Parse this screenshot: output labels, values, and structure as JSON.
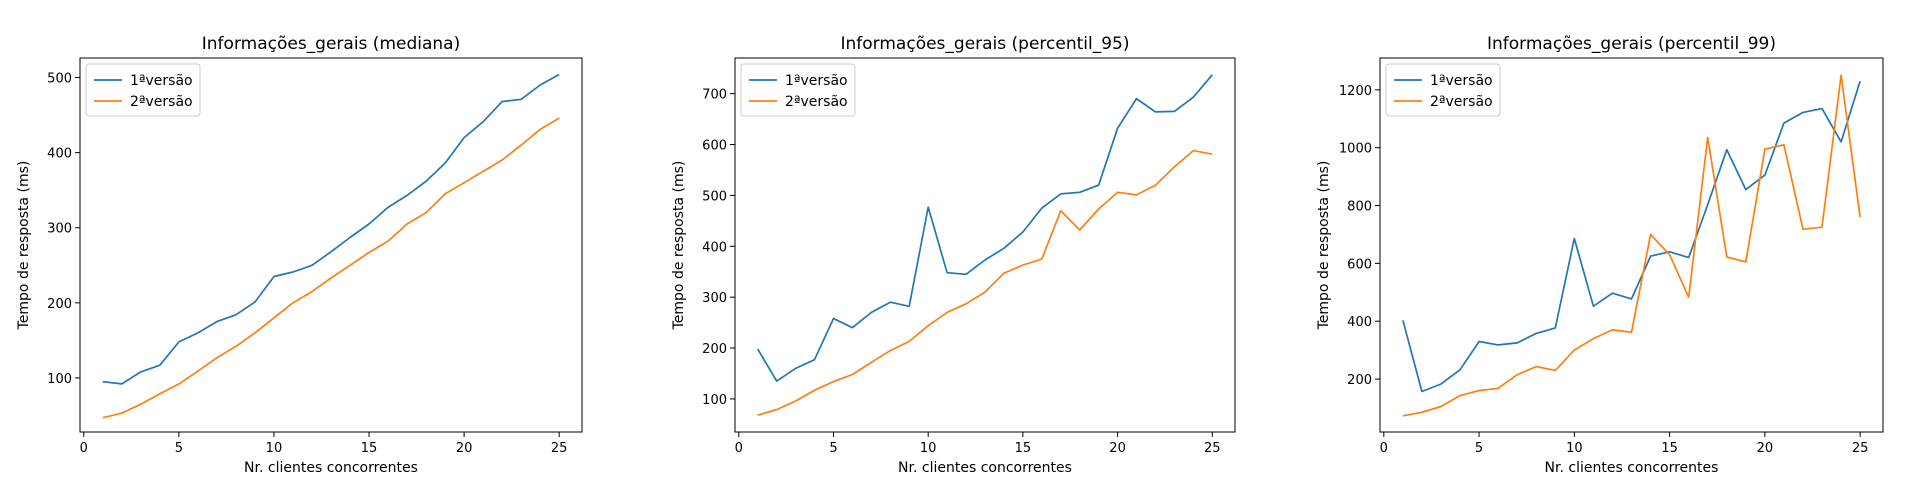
{
  "colors": {
    "series1": "#1f77b4",
    "series2": "#ff7f0e"
  },
  "chart_data": [
    {
      "type": "line",
      "title": "Informações_gerais (mediana)",
      "xlabel": "Nr. clientes concorrentes",
      "ylabel": "Tempo de resposta (ms)",
      "xlim": [
        -0.2,
        26.2
      ],
      "ylim": [
        28,
        526
      ],
      "xticks": [
        0,
        5,
        10,
        15,
        20,
        25
      ],
      "yticks": [
        100,
        200,
        300,
        400,
        500
      ],
      "legend_position": "top-left",
      "x": [
        1,
        2,
        3,
        4,
        5,
        6,
        7,
        8,
        9,
        10,
        11,
        12,
        13,
        14,
        15,
        16,
        17,
        18,
        19,
        20,
        21,
        22,
        23,
        24,
        25
      ],
      "series": [
        {
          "name": "1ªversão",
          "values": [
            95,
            92,
            108,
            117,
            148,
            160,
            175,
            184,
            201,
            235,
            241,
            250,
            268,
            287,
            305,
            327,
            343,
            362,
            386,
            420,
            441,
            468,
            471,
            490,
            504
          ]
        },
        {
          "name": "2ªversão",
          "values": [
            47,
            53,
            65,
            79,
            92,
            109,
            127,
            142,
            160,
            180,
            200,
            215,
            233,
            250,
            267,
            282,
            305,
            320,
            345,
            360,
            375,
            390,
            410,
            431,
            446
          ]
        }
      ]
    },
    {
      "type": "line",
      "title": "Informações_gerais (percentil_95)",
      "xlabel": "Nr. clientes concorrentes",
      "ylabel": "Tempo de resposta (ms)",
      "xlim": [
        -0.2,
        26.2
      ],
      "ylim": [
        35,
        770
      ],
      "xticks": [
        0,
        5,
        10,
        15,
        20,
        25
      ],
      "yticks": [
        100,
        200,
        300,
        400,
        500,
        600,
        700
      ],
      "legend_position": "top-left",
      "x": [
        1,
        2,
        3,
        4,
        5,
        6,
        7,
        8,
        9,
        10,
        11,
        12,
        13,
        14,
        15,
        16,
        17,
        18,
        19,
        20,
        21,
        22,
        23,
        24,
        25
      ],
      "series": [
        {
          "name": "1ªversão",
          "values": [
            198,
            135,
            160,
            177,
            258,
            240,
            270,
            290,
            282,
            477,
            348,
            345,
            373,
            396,
            428,
            475,
            503,
            506,
            520,
            632,
            690,
            664,
            665,
            693,
            737
          ]
        },
        {
          "name": "2ªversão",
          "values": [
            68,
            79,
            96,
            117,
            134,
            148,
            172,
            195,
            213,
            244,
            270,
            287,
            310,
            347,
            363,
            375,
            470,
            432,
            473,
            506,
            501,
            520,
            556,
            588,
            581
          ]
        }
      ]
    },
    {
      "type": "line",
      "title": "Informações_gerais (percentil_99)",
      "xlabel": "Nr. clientes concorrentes",
      "ylabel": "Tempo de resposta (ms)",
      "xlim": [
        -0.2,
        26.2
      ],
      "ylim": [
        17,
        1310
      ],
      "xticks": [
        0,
        5,
        10,
        15,
        20,
        25
      ],
      "yticks": [
        200,
        400,
        600,
        800,
        1000,
        1200
      ],
      "legend_position": "top-left",
      "x": [
        1,
        2,
        3,
        4,
        5,
        6,
        7,
        8,
        9,
        10,
        11,
        12,
        13,
        14,
        15,
        16,
        17,
        18,
        19,
        20,
        21,
        22,
        23,
        24,
        25
      ],
      "series": [
        {
          "name": "1ªversão",
          "values": [
            403,
            157,
            183,
            232,
            330,
            318,
            325,
            358,
            377,
            686,
            452,
            497,
            477,
            625,
            640,
            620,
            803,
            993,
            855,
            905,
            1085,
            1122,
            1135,
            1020,
            1230
          ]
        },
        {
          "name": "2ªversão",
          "values": [
            73,
            85,
            105,
            143,
            160,
            168,
            215,
            243,
            230,
            300,
            340,
            370,
            362,
            700,
            630,
            483,
            1035,
            622,
            605,
            995,
            1010,
            718,
            725,
            1250,
            760
          ]
        }
      ]
    }
  ]
}
